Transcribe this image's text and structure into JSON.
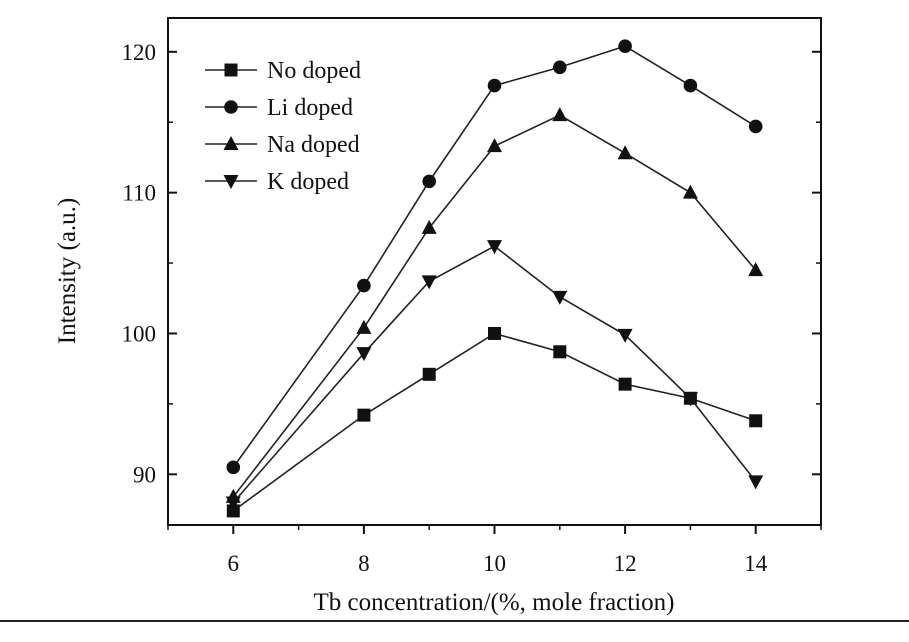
{
  "chart_data": {
    "type": "line",
    "title": "",
    "xlabel": "Tb concentration/(%, mole fraction)",
    "ylabel": "Intensity (a.u.)",
    "xlim": [
      5,
      15
    ],
    "ylim": [
      86.4,
      122.4
    ],
    "x_ticks": [
      6,
      8,
      10,
      12,
      14
    ],
    "y_ticks": [
      90,
      100,
      110,
      120
    ],
    "grid": false,
    "legend_position": "top-left",
    "series": [
      {
        "name": "No doped",
        "marker": "square",
        "x": [
          6,
          8,
          9,
          10,
          11,
          12,
          13,
          14
        ],
        "y": [
          87.4,
          94.2,
          97.1,
          100.0,
          98.7,
          96.4,
          95.4,
          93.8
        ]
      },
      {
        "name": "Li doped",
        "marker": "circle",
        "x": [
          6,
          8,
          9,
          10,
          11,
          12,
          13,
          14
        ],
        "y": [
          90.5,
          103.4,
          110.8,
          117.6,
          118.9,
          120.4,
          117.6,
          114.7
        ]
      },
      {
        "name": "Na doped",
        "marker": "triangle-up",
        "x": [
          6,
          8,
          9,
          10,
          11,
          12,
          13,
          14
        ],
        "y": [
          88.4,
          100.4,
          107.5,
          113.3,
          115.5,
          112.8,
          110.0,
          104.5
        ]
      },
      {
        "name": "K doped",
        "marker": "triangle-down",
        "x": [
          6,
          8,
          9,
          10,
          11,
          12,
          13,
          14
        ],
        "y": [
          88.0,
          98.6,
          103.7,
          106.2,
          102.6,
          99.9,
          95.4,
          89.5
        ]
      }
    ]
  }
}
